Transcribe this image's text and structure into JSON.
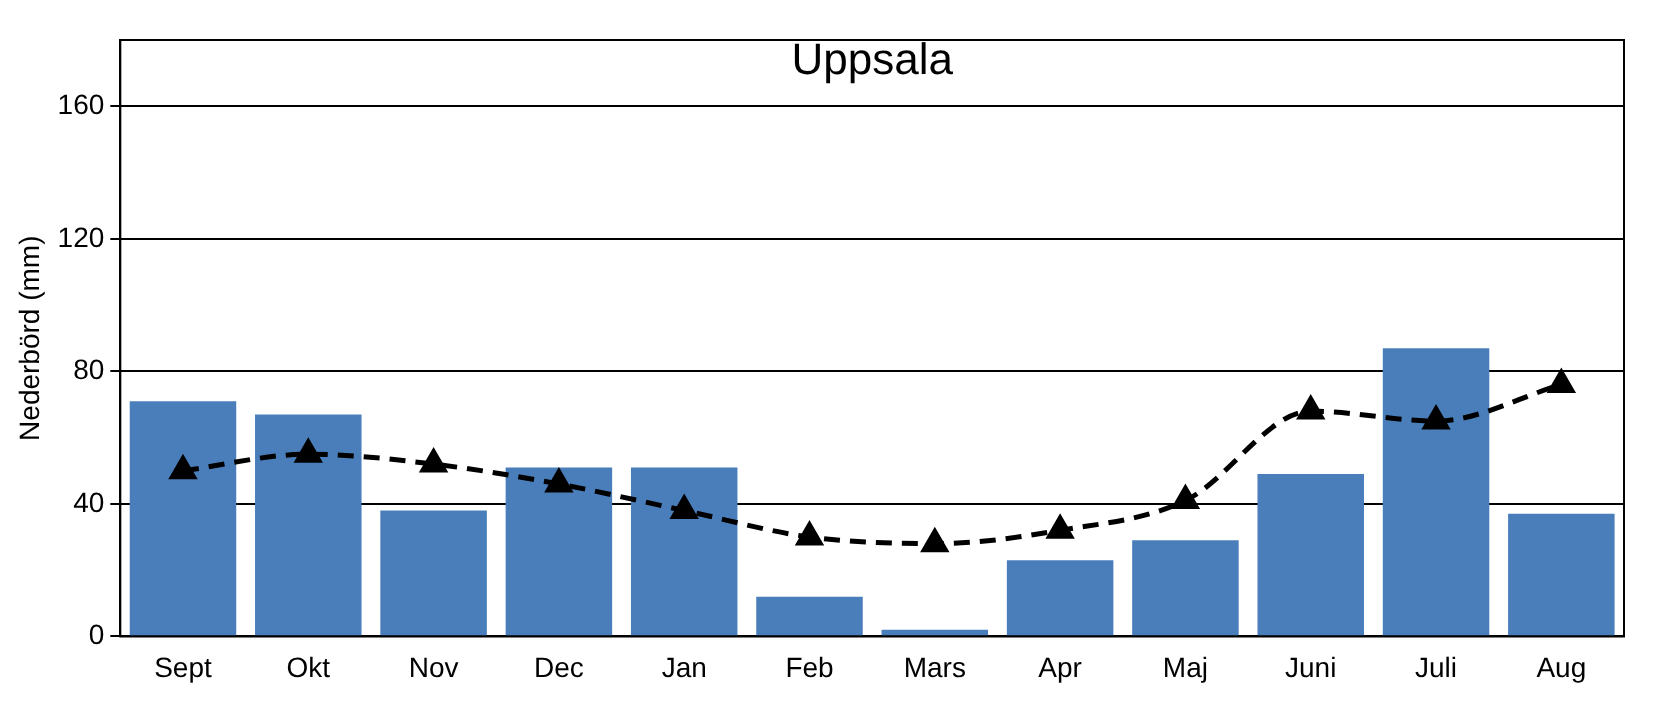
{
  "chart_data": {
    "type": "bar",
    "title": "Uppsala",
    "ylabel": "Nederbörd (mm)",
    "categories": [
      "Sept",
      "Okt",
      "Nov",
      "Dec",
      "Jan",
      "Feb",
      "Mars",
      "Apr",
      "Maj",
      "Juni",
      "Juli",
      "Aug"
    ],
    "series": [
      {
        "color": "#4a7ebb",
        "values": [
          71,
          67,
          38,
          51,
          51,
          12,
          2,
          23,
          29,
          49,
          87,
          37
        ]
      },
      {
        "type": "line",
        "color": "#000000",
        "marker": "triangle",
        "line_style": "dashed",
        "values": [
          50,
          55,
          52,
          46,
          38,
          30,
          28,
          32,
          41,
          68,
          65,
          76
        ]
      }
    ],
    "ylim": [
      0,
      180
    ],
    "yticks": [
      0,
      40,
      80,
      120,
      160
    ],
    "grid": "y",
    "legend": false
  }
}
